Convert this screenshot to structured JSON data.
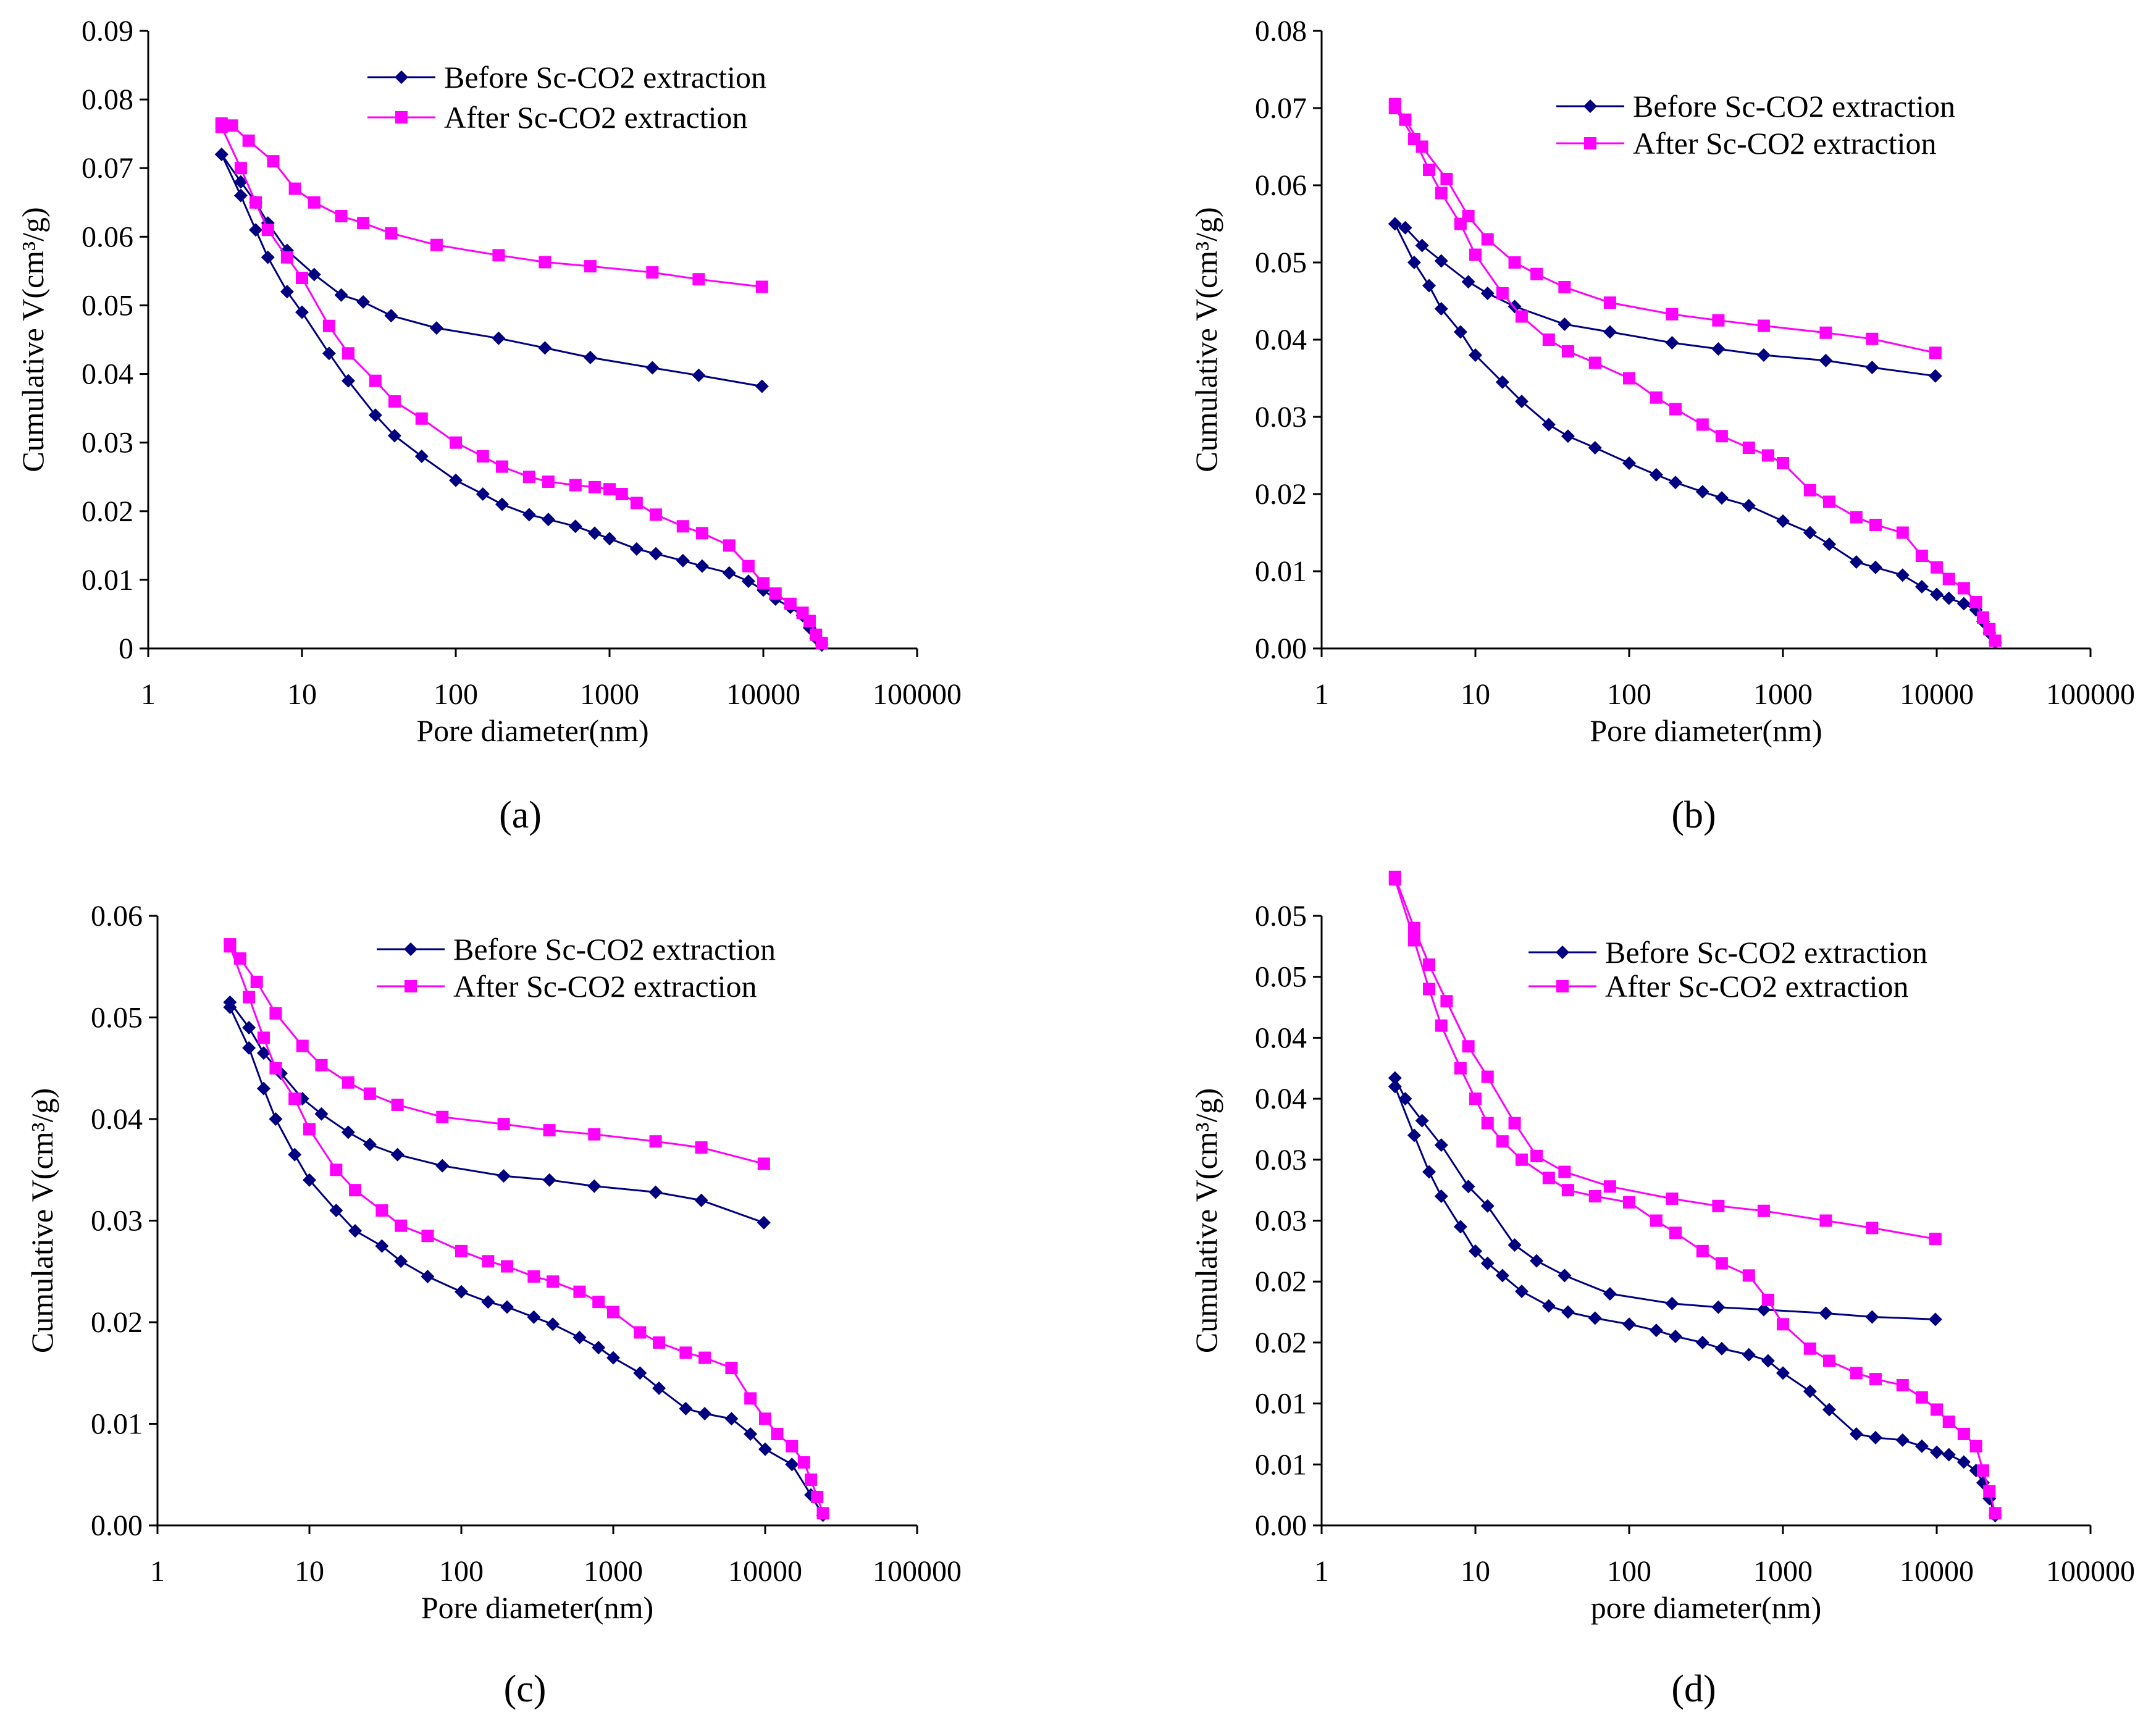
{
  "colors": {
    "before": "#000080",
    "after": "#FF00FF",
    "axis": "#000000"
  },
  "legend": {
    "before": "Before Sc-CO2 extraction",
    "after": "After Sc-CO2 extraction"
  },
  "chart_data": [
    {
      "type": "line",
      "panel_label": "(a)",
      "xlabel": "Pore diameter(nm)",
      "ylabel": "Cumulative V(cm³/g)",
      "x_scale": "log",
      "xlim": [
        1,
        100000
      ],
      "ylim": [
        0,
        0.09
      ],
      "x_ticks": [
        "1",
        "10",
        "100",
        "1000",
        "10000",
        "100000"
      ],
      "y_ticks": [
        "0",
        "0.01",
        "0.02",
        "0.03",
        "0.04",
        "0.05",
        "0.06",
        "0.07",
        "0.08",
        "0.09"
      ],
      "series": [
        {
          "name": "Before Sc-CO2 extraction",
          "branch": "intrusion",
          "x": [
            3,
            4,
            5,
            6,
            8,
            10,
            15,
            20,
            30,
            40,
            60,
            100,
            150,
            200,
            300,
            400,
            600,
            800,
            1000,
            1500,
            2000,
            3000,
            4000,
            6000,
            8000,
            10000,
            12000,
            15000,
            18000,
            20000,
            22000,
            24000
          ],
          "y": [
            0.072,
            0.066,
            0.061,
            0.057,
            0.052,
            0.049,
            0.043,
            0.039,
            0.034,
            0.031,
            0.028,
            0.0245,
            0.0225,
            0.021,
            0.0195,
            0.0188,
            0.0178,
            0.0168,
            0.016,
            0.0145,
            0.0138,
            0.0128,
            0.012,
            0.011,
            0.0098,
            0.0085,
            0.0072,
            0.006,
            0.0048,
            0.003,
            0.0015,
            0.0005
          ]
        },
        {
          "name": "Before Sc-CO2 extraction",
          "branch": "extrusion",
          "x": [
            3,
            4,
            5,
            6,
            8,
            12,
            18,
            25,
            38,
            75,
            190,
            380,
            750,
            1900,
            3800,
            9800
          ],
          "y": [
            0.072,
            0.068,
            0.065,
            0.062,
            0.058,
            0.0545,
            0.0515,
            0.0505,
            0.0485,
            0.0467,
            0.0452,
            0.0438,
            0.0424,
            0.0409,
            0.0398,
            0.0382
          ]
        },
        {
          "name": "After Sc-CO2 extraction",
          "branch": "intrusion",
          "x": [
            3,
            4,
            5,
            6,
            8,
            10,
            15,
            20,
            30,
            40,
            60,
            100,
            150,
            200,
            300,
            400,
            600,
            800,
            1000,
            1200,
            1500,
            2000,
            3000,
            4000,
            6000,
            8000,
            10000,
            12000,
            15000,
            18000,
            20000,
            22000,
            24000
          ],
          "y": [
            0.076,
            0.07,
            0.065,
            0.061,
            0.057,
            0.054,
            0.047,
            0.043,
            0.039,
            0.036,
            0.0335,
            0.03,
            0.028,
            0.0265,
            0.025,
            0.0243,
            0.0238,
            0.0235,
            0.0232,
            0.0225,
            0.0212,
            0.0195,
            0.0178,
            0.0168,
            0.015,
            0.012,
            0.0095,
            0.008,
            0.0065,
            0.0052,
            0.004,
            0.002,
            0.0008
          ]
        },
        {
          "name": "After Sc-CO2 extraction",
          "branch": "extrusion",
          "x": [
            3,
            3.5,
            4.5,
            6.5,
            9,
            12,
            18,
            25,
            38,
            75,
            190,
            380,
            750,
            1900,
            3800,
            9800
          ],
          "y": [
            0.0765,
            0.0762,
            0.074,
            0.071,
            0.067,
            0.065,
            0.063,
            0.062,
            0.0605,
            0.0588,
            0.0573,
            0.0563,
            0.0557,
            0.0548,
            0.0538,
            0.0527
          ]
        }
      ]
    },
    {
      "type": "line",
      "panel_label": "(b)",
      "xlabel": "Pore diameter(nm)",
      "ylabel": "Cumulative V(cm³/g)",
      "x_scale": "log",
      "xlim": [
        1,
        100000
      ],
      "ylim": [
        0,
        0.08
      ],
      "x_ticks": [
        "1",
        "10",
        "100",
        "1000",
        "10000",
        "100000"
      ],
      "y_ticks": [
        "0.00",
        "0.01",
        "0.02",
        "0.03",
        "0.04",
        "0.05",
        "0.06",
        "0.07",
        "0.08"
      ],
      "series": [
        {
          "name": "Before Sc-CO2 extraction",
          "branch": "intrusion",
          "x": [
            3,
            4,
            5,
            6,
            8,
            10,
            15,
            20,
            30,
            40,
            60,
            100,
            150,
            200,
            300,
            400,
            600,
            1000,
            1500,
            2000,
            3000,
            4000,
            6000,
            8000,
            10000,
            12000,
            15000,
            18000,
            20000,
            22000,
            24000
          ],
          "y": [
            0.055,
            0.05,
            0.047,
            0.044,
            0.041,
            0.038,
            0.0345,
            0.032,
            0.029,
            0.0275,
            0.026,
            0.024,
            0.0225,
            0.0215,
            0.0203,
            0.0195,
            0.0185,
            0.0165,
            0.015,
            0.0135,
            0.0112,
            0.0105,
            0.0095,
            0.008,
            0.007,
            0.0065,
            0.0058,
            0.005,
            0.0035,
            0.002,
            0.0008
          ]
        },
        {
          "name": "Before Sc-CO2 extraction",
          "branch": "extrusion",
          "x": [
            3,
            3.5,
            4.5,
            6,
            9,
            12,
            18,
            38,
            75,
            190,
            380,
            750,
            1900,
            3800,
            9800
          ],
          "y": [
            0.055,
            0.0545,
            0.0522,
            0.0502,
            0.0475,
            0.046,
            0.0443,
            0.042,
            0.041,
            0.0396,
            0.0388,
            0.038,
            0.0373,
            0.0364,
            0.0353
          ]
        },
        {
          "name": "After Sc-CO2 extraction",
          "branch": "intrusion",
          "x": [
            3,
            4,
            5,
            6,
            8,
            10,
            15,
            20,
            30,
            40,
            60,
            100,
            150,
            200,
            300,
            400,
            600,
            800,
            1000,
            1500,
            2000,
            3000,
            4000,
            6000,
            8000,
            10000,
            12000,
            15000,
            18000,
            20000,
            22000,
            24000
          ],
          "y": [
            0.07,
            0.066,
            0.062,
            0.059,
            0.055,
            0.051,
            0.046,
            0.043,
            0.04,
            0.0385,
            0.037,
            0.035,
            0.0325,
            0.031,
            0.029,
            0.0275,
            0.026,
            0.025,
            0.024,
            0.0205,
            0.019,
            0.017,
            0.016,
            0.015,
            0.012,
            0.0105,
            0.009,
            0.0078,
            0.006,
            0.004,
            0.0025,
            0.001
          ]
        },
        {
          "name": "After Sc-CO2 extraction",
          "branch": "extrusion",
          "x": [
            3,
            3.5,
            4.5,
            6.5,
            9,
            12,
            18,
            25,
            38,
            75,
            190,
            380,
            750,
            1900,
            3800,
            9800
          ],
          "y": [
            0.0705,
            0.0685,
            0.065,
            0.0608,
            0.056,
            0.053,
            0.05,
            0.0485,
            0.0468,
            0.0448,
            0.0433,
            0.0425,
            0.0418,
            0.0409,
            0.0401,
            0.0383
          ]
        }
      ]
    },
    {
      "type": "line",
      "panel_label": "(c)",
      "xlabel": "Pore diameter(nm)",
      "ylabel": "Cumulative V(cm³/g)",
      "x_scale": "log",
      "xlim": [
        1,
        100000
      ],
      "ylim": [
        0,
        0.06
      ],
      "x_ticks": [
        "1",
        "10",
        "100",
        "1000",
        "10000",
        "100000"
      ],
      "y_ticks": [
        "0.00",
        "0.01",
        "0.02",
        "0.03",
        "0.04",
        "0.05",
        "0.06"
      ],
      "series": [
        {
          "name": "Before Sc-CO2 extraction",
          "branch": "intrusion",
          "x": [
            3,
            4,
            5,
            6,
            8,
            10,
            15,
            20,
            30,
            40,
            60,
            100,
            150,
            200,
            300,
            400,
            600,
            800,
            1000,
            1500,
            2000,
            3000,
            4000,
            6000,
            8000,
            10000,
            15000,
            20000,
            24000
          ],
          "y": [
            0.051,
            0.047,
            0.043,
            0.04,
            0.0365,
            0.034,
            0.031,
            0.029,
            0.0275,
            0.026,
            0.0245,
            0.023,
            0.022,
            0.0215,
            0.0205,
            0.0198,
            0.0185,
            0.0175,
            0.0165,
            0.015,
            0.0135,
            0.0115,
            0.011,
            0.0105,
            0.009,
            0.0075,
            0.006,
            0.003,
            0.001
          ]
        },
        {
          "name": "Before Sc-CO2 extraction",
          "branch": "extrusion",
          "x": [
            3,
            4,
            5,
            6.5,
            9,
            12,
            18,
            25,
            38,
            75,
            190,
            380,
            750,
            1900,
            3800,
            9800
          ],
          "y": [
            0.0515,
            0.049,
            0.0465,
            0.0445,
            0.042,
            0.0405,
            0.0387,
            0.0375,
            0.0365,
            0.0354,
            0.0344,
            0.034,
            0.0334,
            0.0328,
            0.032,
            0.0298
          ]
        },
        {
          "name": "After Sc-CO2 extraction",
          "branch": "intrusion",
          "x": [
            3,
            4,
            5,
            6,
            8,
            10,
            15,
            20,
            30,
            40,
            60,
            100,
            150,
            200,
            300,
            400,
            600,
            800,
            1000,
            1500,
            2000,
            3000,
            4000,
            6000,
            8000,
            10000,
            12000,
            15000,
            18000,
            20000,
            22000,
            24000
          ],
          "y": [
            0.057,
            0.052,
            0.048,
            0.045,
            0.042,
            0.039,
            0.035,
            0.033,
            0.031,
            0.0295,
            0.0285,
            0.027,
            0.026,
            0.0255,
            0.0245,
            0.024,
            0.023,
            0.022,
            0.021,
            0.019,
            0.018,
            0.017,
            0.0165,
            0.0155,
            0.0125,
            0.0105,
            0.009,
            0.0078,
            0.0062,
            0.0045,
            0.0028,
            0.0012
          ]
        },
        {
          "name": "After Sc-CO2 extraction",
          "branch": "extrusion",
          "x": [
            3,
            3.5,
            4.5,
            6,
            9,
            12,
            18,
            25,
            38,
            75,
            190,
            380,
            750,
            1900,
            3800,
            9800
          ],
          "y": [
            0.0572,
            0.0558,
            0.0535,
            0.0504,
            0.0472,
            0.0453,
            0.0436,
            0.0425,
            0.0414,
            0.0402,
            0.0395,
            0.0389,
            0.0385,
            0.0378,
            0.0372,
            0.0356
          ]
        }
      ]
    },
    {
      "type": "line",
      "panel_label": "(d)",
      "xlabel": "pore diameter(nm)",
      "ylabel": "Cumulative V(cm³/g)",
      "x_scale": "log",
      "xlim": [
        1,
        100000
      ],
      "ylim": [
        0,
        0.05
      ],
      "x_ticks": [
        "1",
        "10",
        "100",
        "1000",
        "10000",
        "100000"
      ],
      "y_ticks": [
        "0.00",
        "0.01",
        "0.01",
        "0.02",
        "0.02",
        "0.03",
        "0.03",
        "0.04",
        "0.04",
        "0.05",
        "0.05"
      ],
      "series": [
        {
          "name": "Before Sc-CO2 extraction",
          "branch": "intrusion",
          "x": [
            3,
            4,
            5,
            6,
            8,
            10,
            12,
            15,
            20,
            30,
            40,
            60,
            100,
            150,
            200,
            300,
            400,
            600,
            800,
            1000,
            1500,
            2000,
            3000,
            4000,
            6000,
            8000,
            10000,
            12000,
            15000,
            18000,
            20000,
            22000,
            24000
          ],
          "y": [
            0.036,
            0.032,
            0.029,
            0.027,
            0.0245,
            0.0225,
            0.0215,
            0.0205,
            0.0192,
            0.018,
            0.0175,
            0.017,
            0.0165,
            0.016,
            0.0155,
            0.015,
            0.0145,
            0.014,
            0.0135,
            0.0125,
            0.011,
            0.0095,
            0.0075,
            0.0072,
            0.007,
            0.0065,
            0.006,
            0.0058,
            0.0052,
            0.0045,
            0.0035,
            0.0022,
            0.0008
          ]
        },
        {
          "name": "Before Sc-CO2 extraction",
          "branch": "extrusion",
          "x": [
            3,
            3.5,
            4.5,
            6,
            9,
            12,
            18,
            25,
            38,
            75,
            190,
            380,
            750,
            1900,
            3800,
            9800
          ],
          "y": [
            0.0367,
            0.035,
            0.0332,
            0.0312,
            0.0278,
            0.0262,
            0.023,
            0.0217,
            0.0205,
            0.019,
            0.0182,
            0.0179,
            0.0177,
            0.0174,
            0.0171,
            0.0169
          ]
        },
        {
          "name": "After Sc-CO2 extraction",
          "branch": "intrusion",
          "x": [
            3,
            4,
            5,
            6,
            8,
            10,
            12,
            15,
            20,
            30,
            40,
            60,
            100,
            150,
            200,
            300,
            400,
            600,
            800,
            1000,
            1500,
            2000,
            3000,
            4000,
            6000,
            8000,
            10000,
            12000,
            15000,
            18000,
            20000,
            22000,
            24000
          ],
          "y": [
            0.053,
            0.048,
            0.044,
            0.041,
            0.0375,
            0.035,
            0.033,
            0.0315,
            0.03,
            0.0285,
            0.0275,
            0.027,
            0.0265,
            0.025,
            0.024,
            0.0225,
            0.0215,
            0.0205,
            0.0185,
            0.0165,
            0.0145,
            0.0135,
            0.0125,
            0.012,
            0.0115,
            0.0105,
            0.0095,
            0.0085,
            0.0075,
            0.0065,
            0.0045,
            0.0028,
            0.001
          ]
        },
        {
          "name": "After Sc-CO2 extraction",
          "branch": "extrusion",
          "x": [
            3,
            4,
            5,
            6.5,
            9,
            12,
            18,
            25,
            38,
            75,
            190,
            380,
            750,
            1900,
            3800,
            9800
          ],
          "y": [
            0.0532,
            0.049,
            0.046,
            0.043,
            0.0393,
            0.0368,
            0.033,
            0.0303,
            0.029,
            0.0278,
            0.0268,
            0.0262,
            0.0258,
            0.025,
            0.0244,
            0.0235
          ]
        }
      ]
    }
  ]
}
